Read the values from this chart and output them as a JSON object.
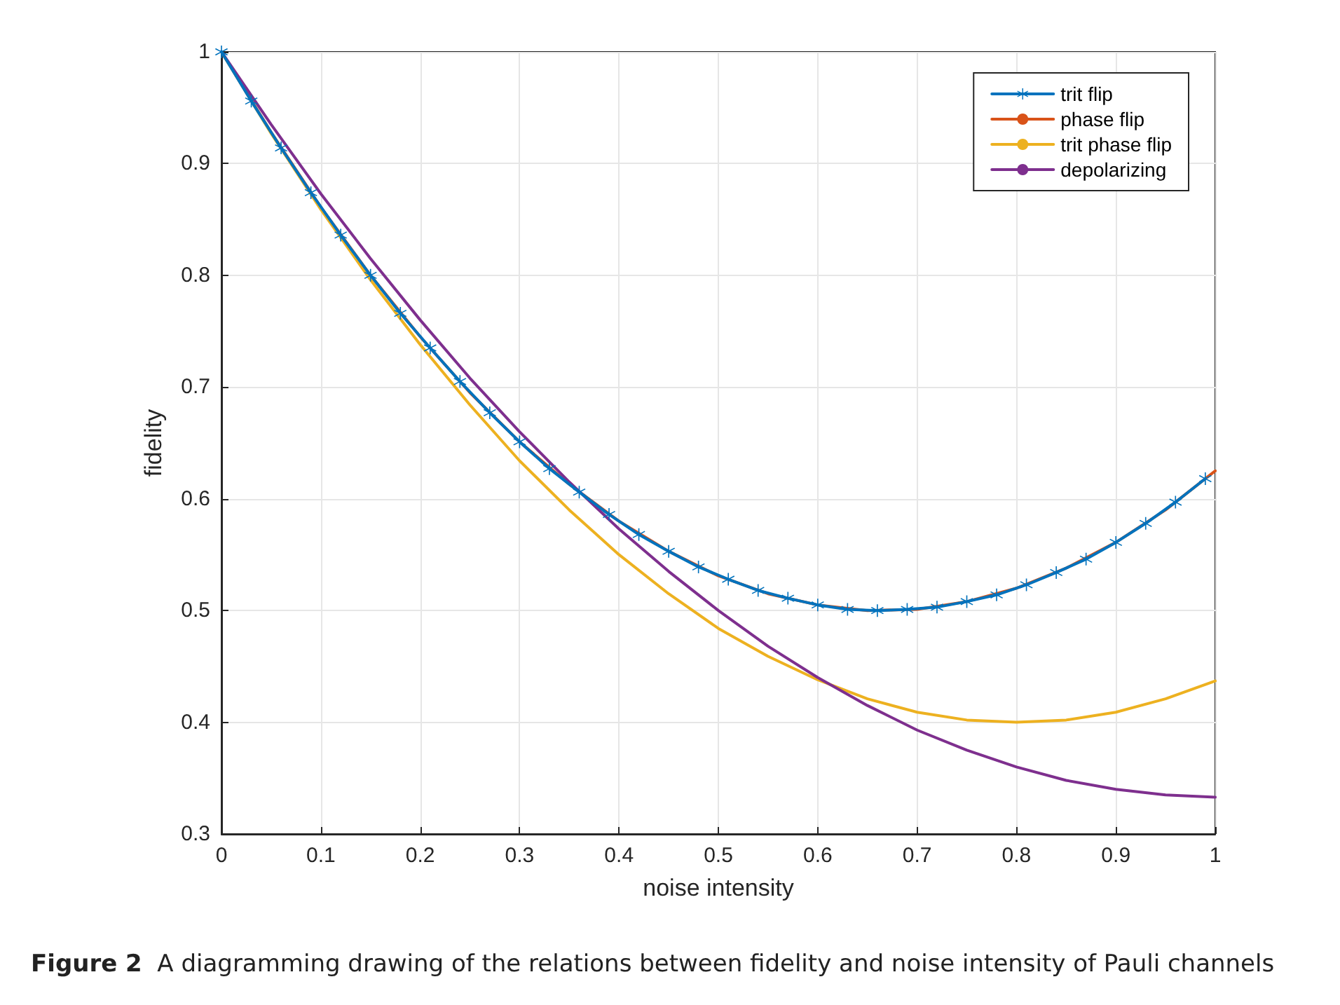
{
  "chart_data": {
    "type": "line",
    "xlabel": "noise intensity",
    "ylabel": "fidelity",
    "xlim": [
      0,
      1
    ],
    "xticks": [
      0,
      0.1,
      0.2,
      0.3,
      0.4,
      0.5,
      0.6,
      0.7,
      0.8,
      0.9,
      1
    ],
    "ylim": [
      0.3,
      1
    ],
    "yticks": [
      0.3,
      0.4,
      0.5,
      0.6,
      0.7,
      0.8,
      0.9,
      1
    ],
    "grid": true,
    "legend": "top right",
    "line_style": "solid",
    "annotations": [
      "Figure 2  A diagramming drawing of the relations between fidelity and noise intensity of Pauli channels"
    ],
    "series": [
      {
        "name": "phase flip",
        "color": "#d95319",
        "marker": "none",
        "x": [
          0,
          0.05,
          0.1,
          0.15,
          0.2,
          0.25,
          0.3,
          0.35,
          0.4,
          0.45,
          0.5,
          0.55,
          0.6,
          0.65,
          0.7,
          0.75,
          0.8,
          0.85,
          0.9,
          0.95,
          1
        ],
        "values": [
          1,
          0.928,
          0.861,
          0.8,
          0.745,
          0.695,
          0.651,
          0.613,
          0.58,
          0.553,
          0.531,
          0.515,
          0.505,
          0.5,
          0.501,
          0.508,
          0.52,
          0.538,
          0.561,
          0.59,
          0.625
        ]
      },
      {
        "name": "trit phase flip",
        "color": "#edb120",
        "marker": "none",
        "x": [
          0,
          0.05,
          0.1,
          0.15,
          0.2,
          0.25,
          0.3,
          0.35,
          0.4,
          0.45,
          0.5,
          0.55,
          0.6,
          0.65,
          0.7,
          0.75,
          0.8,
          0.85,
          0.9,
          0.95,
          1
        ],
        "values": [
          1,
          0.927,
          0.859,
          0.796,
          0.738,
          0.684,
          0.634,
          0.59,
          0.55,
          0.515,
          0.484,
          0.459,
          0.438,
          0.421,
          0.409,
          0.402,
          0.4,
          0.402,
          0.409,
          0.421,
          0.437
        ]
      },
      {
        "name": "depolarizing",
        "color": "#7e2f8e",
        "marker": "none",
        "x": [
          0,
          0.05,
          0.1,
          0.15,
          0.2,
          0.25,
          0.3,
          0.35,
          0.4,
          0.45,
          0.5,
          0.55,
          0.6,
          0.65,
          0.7,
          0.75,
          0.8,
          0.85,
          0.9,
          0.95,
          1
        ],
        "values": [
          1,
          0.935,
          0.873,
          0.815,
          0.76,
          0.708,
          0.66,
          0.615,
          0.573,
          0.535,
          0.5,
          0.468,
          0.44,
          0.415,
          0.393,
          0.375,
          0.36,
          0.348,
          0.34,
          0.335,
          0.333
        ]
      },
      {
        "name": "trit flip",
        "color": "#0072bd",
        "marker": "star",
        "x": [
          0,
          0.03,
          0.06,
          0.09,
          0.12,
          0.15,
          0.18,
          0.21,
          0.24,
          0.27,
          0.3,
          0.33,
          0.36,
          0.39,
          0.42,
          0.45,
          0.48,
          0.51,
          0.54,
          0.57,
          0.6,
          0.63,
          0.66,
          0.69,
          0.72,
          0.75,
          0.78,
          0.81,
          0.84,
          0.87,
          0.9,
          0.93,
          0.96,
          0.99
        ],
        "values": [
          1,
          0.956,
          0.914,
          0.874,
          0.836,
          0.8,
          0.766,
          0.735,
          0.705,
          0.677,
          0.651,
          0.627,
          0.606,
          0.586,
          0.568,
          0.553,
          0.539,
          0.528,
          0.518,
          0.511,
          0.505,
          0.501,
          0.5,
          0.501,
          0.503,
          0.508,
          0.514,
          0.523,
          0.534,
          0.546,
          0.561,
          0.578,
          0.597,
          0.618
        ]
      }
    ]
  }
}
